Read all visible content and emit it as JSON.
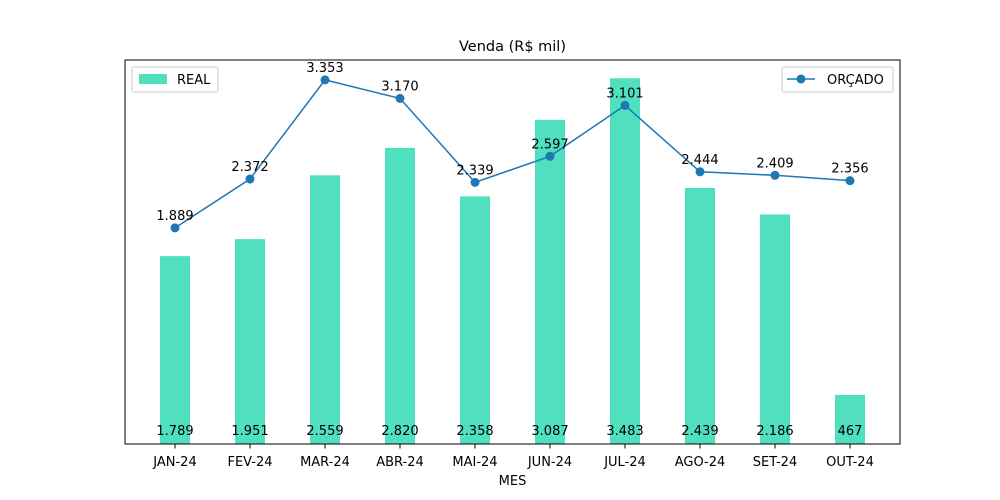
{
  "chart_data": {
    "type": "bar",
    "title": "Venda (R$ mil)",
    "xlabel": "MES",
    "ylabel": "",
    "categories": [
      "JAN-24",
      "FEV-24",
      "MAR-24",
      "ABR-24",
      "MAI-24",
      "JUN-24",
      "JUL-24",
      "AGO-24",
      "SET-24",
      "OUT-24"
    ],
    "series": [
      {
        "name": "REAL",
        "type": "bar",
        "color": "#50e0bf",
        "values": [
          1789,
          1951,
          2559,
          2820,
          2358,
          3087,
          3483,
          2439,
          2186,
          467
        ],
        "labels": [
          "1.789",
          "1.951",
          "2.559",
          "2.820",
          "2.358",
          "3.087",
          "3.483",
          "2.439",
          "2.186",
          "467"
        ],
        "ylim": [
          0,
          3657
        ]
      },
      {
        "name": "ORÇADO",
        "type": "line",
        "color": "#1f77b4",
        "values": [
          1889,
          2372,
          3353,
          3170,
          2339,
          2597,
          3101,
          2444,
          2409,
          2356
        ],
        "labels": [
          "1.889",
          "2.372",
          "3.353",
          "3.170",
          "2.339",
          "2.597",
          "3.101",
          "2.444",
          "2.409",
          "2.356"
        ],
        "ylim": [
          -250,
          3550
        ]
      }
    ],
    "legend": [
      {
        "label": "REAL",
        "placement": "top-left"
      },
      {
        "label": "ORÇADO",
        "placement": "top-right"
      }
    ],
    "grid": false,
    "yticks": false
  }
}
